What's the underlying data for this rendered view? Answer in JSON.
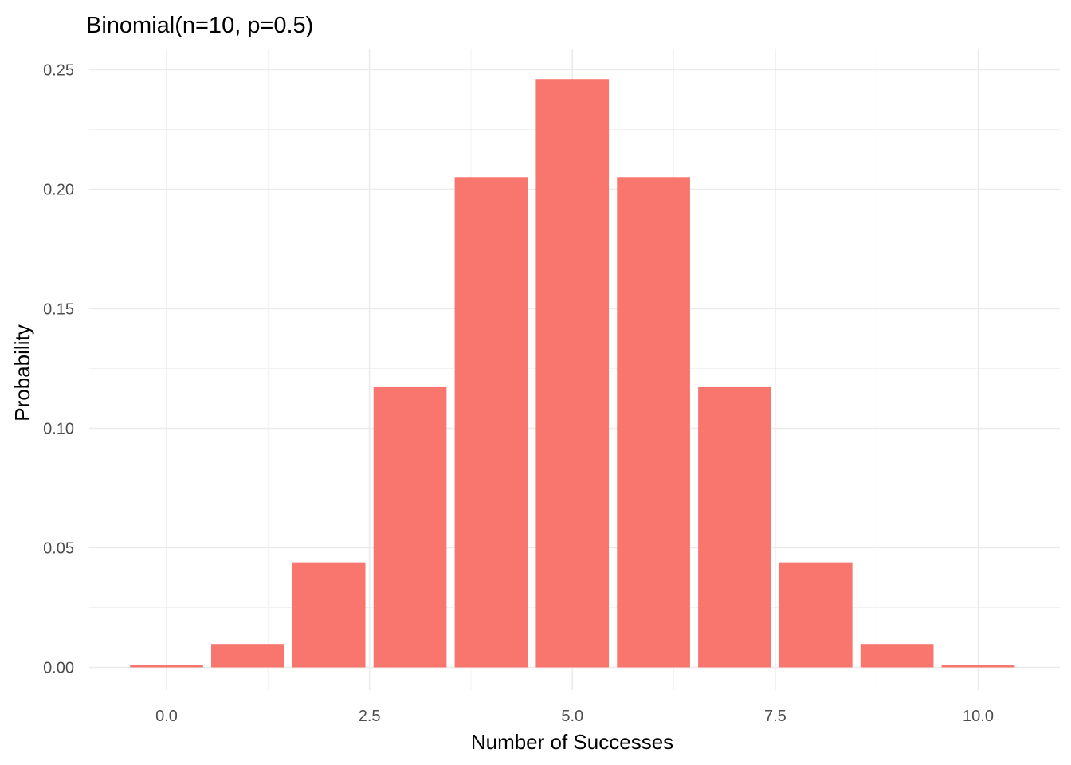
{
  "chart_data": {
    "type": "bar",
    "title": "Binomial(n=10, p=0.5)",
    "xlabel": "Number of Successes",
    "ylabel": "Probability",
    "x": [
      0,
      1,
      2,
      3,
      4,
      5,
      6,
      7,
      8,
      9,
      10
    ],
    "values": [
      0.000977,
      0.009766,
      0.043945,
      0.117188,
      0.205078,
      0.246094,
      0.205078,
      0.117188,
      0.043945,
      0.009766,
      0.000977
    ],
    "xlim": [
      -0.5,
      10.5
    ],
    "ylim": [
      0,
      0.25
    ],
    "x_ticks": [
      "0.0",
      "2.5",
      "5.0",
      "7.5",
      "10.0"
    ],
    "x_tick_values": [
      0,
      2.5,
      5,
      7.5,
      10
    ],
    "y_ticks": [
      "0.00",
      "0.05",
      "0.10",
      "0.15",
      "0.20",
      "0.25"
    ],
    "y_tick_values": [
      0,
      0.05,
      0.1,
      0.15,
      0.2,
      0.25
    ],
    "bar_color": "#f8766d",
    "grid": true,
    "legend": "none"
  }
}
